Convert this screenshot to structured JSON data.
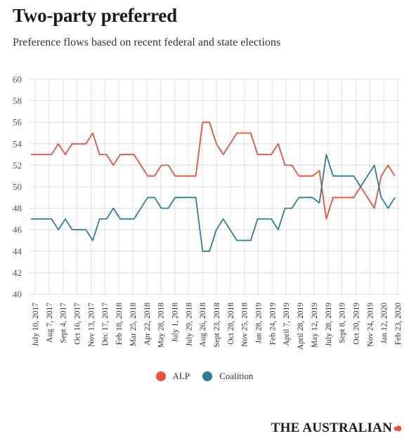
{
  "header": {
    "title": "Two-party preferred",
    "subtitle": "Preference flows based on recent federal and state elections"
  },
  "legend": [
    {
      "name": "ALP",
      "color": "#e8513e"
    },
    {
      "name": "Coalition",
      "color": "#2a7f97"
    }
  ],
  "brand": {
    "name": "THE AUSTRALIAN",
    "mark_color": "#e8513e"
  },
  "chart_data": {
    "type": "line",
    "ylim": [
      40,
      60
    ],
    "yticks": [
      40,
      42,
      44,
      46,
      48,
      50,
      52,
      54,
      56,
      58,
      60
    ],
    "grid": true,
    "legend_position": "bottom-center",
    "tick_labels": [
      "July 10, 2017",
      "Aug 7, 2017",
      "Sept 4, 2017",
      "Oct 16, 2017",
      "Nov 13, 2017",
      "Dec 17, 2017",
      "Feb 18, 2018",
      "Mar 25, 2018",
      "Apr 22, 2018",
      "May 28, 2018",
      "July 1, 2018",
      "July 29, 2018",
      "Aug 26, 2018",
      "Sept 23, 2018",
      "Oct 28, 2018",
      "Nov 25, 2018",
      "Jan 28, 2019",
      "Feb 24, 2019",
      "April 7, 2019",
      "April 28, 2019",
      "May 12, 2019",
      "July 28, 2019",
      "Sept 8, 2019",
      "Oct 20, 2019",
      "Nov 24, 2019",
      "Jan 12, 2020",
      "Feb 23, 2020"
    ],
    "series": [
      {
        "name": "ALP",
        "color": "#e8513e",
        "values": [
          53,
          53,
          53,
          53,
          54,
          53,
          54,
          54,
          54,
          55,
          53,
          53,
          52,
          53,
          53,
          53,
          52,
          51,
          51,
          52,
          52,
          51,
          51,
          51,
          51,
          56,
          56,
          54,
          53,
          54,
          55,
          55,
          55,
          53,
          53,
          53,
          54,
          52,
          52,
          51,
          51,
          51,
          51.5,
          47,
          49,
          49,
          49,
          49,
          50,
          49,
          48,
          51,
          52,
          51
        ]
      },
      {
        "name": "Coalition",
        "color": "#2a7f97",
        "values": [
          47,
          47,
          47,
          47,
          46,
          47,
          46,
          46,
          46,
          45,
          47,
          47,
          48,
          47,
          47,
          47,
          48,
          49,
          49,
          48,
          48,
          49,
          49,
          49,
          49,
          44,
          44,
          46,
          47,
          46,
          45,
          45,
          45,
          47,
          47,
          47,
          46,
          48,
          48,
          49,
          49,
          49,
          48.5,
          53,
          51,
          51,
          51,
          51,
          50,
          51,
          52,
          49,
          48,
          49
        ]
      }
    ]
  }
}
